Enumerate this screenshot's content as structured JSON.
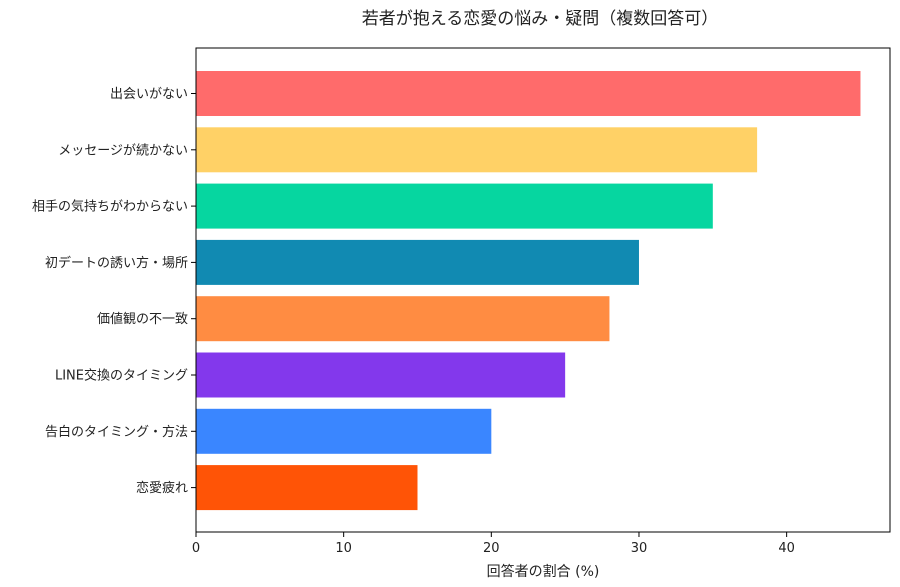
{
  "chart_data": {
    "type": "bar",
    "orientation": "horizontal",
    "title": "若者が抱える恋愛の悩み・疑問（複数回答可）",
    "xlabel": "回答者の割合 (%)",
    "ylabel": "",
    "xlim": [
      0,
      47
    ],
    "xticks": [
      0,
      10,
      20,
      30,
      40
    ],
    "grid": false,
    "categories": [
      "出会いがない",
      "メッセージが続かない",
      "相手の気持ちがわからない",
      "初デートの誘い方・場所",
      "価値観の不一致",
      "LINE交換のタイミング",
      "告白のタイミング・方法",
      "恋愛疲れ"
    ],
    "values": [
      45,
      38,
      35,
      30,
      28,
      25,
      20,
      15
    ],
    "colors": [
      "#ff6b6b",
      "#ffd166",
      "#06d6a0",
      "#118ab2",
      "#ff8c42",
      "#8338ec",
      "#3a86ff",
      "#ff5406"
    ]
  }
}
